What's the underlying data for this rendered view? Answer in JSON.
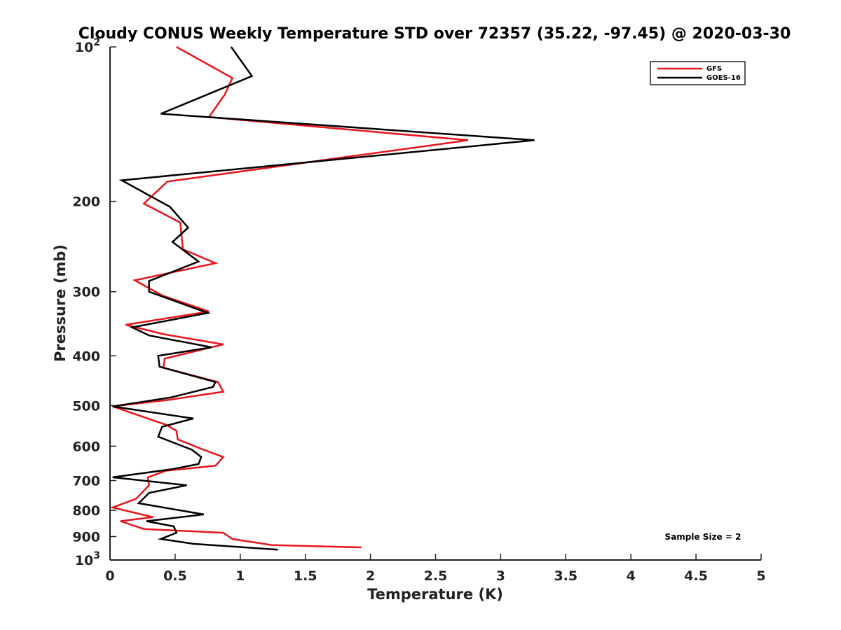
{
  "chart_data": {
    "type": "line",
    "title": "Cloudy CONUS Weekly Temperature STD over 72357 (35.22, -97.45) @ 2020-03-30",
    "xlabel": "Temperature (K)",
    "ylabel": "Pressure (mb)",
    "xlim": [
      0,
      5
    ],
    "ylim": [
      100,
      1000
    ],
    "y_scale": "log",
    "y_reversed": true,
    "x_ticks": [
      "0",
      "0.5",
      "1",
      "1.5",
      "2",
      "2.5",
      "3",
      "3.5",
      "4",
      "4.5",
      "5"
    ],
    "y_ticks": [
      {
        "value": 100,
        "base": "10",
        "exp": "2"
      },
      {
        "value": 200,
        "label": "200"
      },
      {
        "value": 300,
        "label": "300"
      },
      {
        "value": 400,
        "label": "400"
      },
      {
        "value": 500,
        "label": "500"
      },
      {
        "value": 600,
        "label": "600"
      },
      {
        "value": 700,
        "label": "700"
      },
      {
        "value": 800,
        "label": "800"
      },
      {
        "value": 900,
        "label": "900"
      },
      {
        "value": 1000,
        "base": "10",
        "exp": "3"
      }
    ],
    "grid": false,
    "legend": "top-right",
    "annotation": "Sample Size = 2",
    "series": [
      {
        "name": "GFS",
        "color": "#e8151b",
        "points": [
          [
            0.51,
            100
          ],
          [
            0.94,
            115
          ],
          [
            0.88,
            124
          ],
          [
            0.76,
            137
          ],
          [
            2.75,
            152
          ],
          [
            0.44,
            183
          ],
          [
            0.26,
            202
          ],
          [
            0.54,
            220
          ],
          [
            0.56,
            248
          ],
          [
            0.81,
            264
          ],
          [
            0.19,
            285
          ],
          [
            0.4,
            305
          ],
          [
            0.76,
            328
          ],
          [
            0.12,
            348
          ],
          [
            0.41,
            363
          ],
          [
            0.87,
            380
          ],
          [
            0.42,
            405
          ],
          [
            0.41,
            422
          ],
          [
            0.83,
            450
          ],
          [
            0.87,
            470
          ],
          [
            0.46,
            487
          ],
          [
            0.02,
            502
          ],
          [
            0.43,
            545
          ],
          [
            0.51,
            560
          ],
          [
            0.52,
            582
          ],
          [
            0.72,
            610
          ],
          [
            0.87,
            630
          ],
          [
            0.81,
            655
          ],
          [
            0.43,
            670
          ],
          [
            0.29,
            690
          ],
          [
            0.3,
            715
          ],
          [
            0.2,
            760
          ],
          [
            0.02,
            790
          ],
          [
            0.33,
            825
          ],
          [
            0.08,
            840
          ],
          [
            0.26,
            870
          ],
          [
            0.87,
            885
          ],
          [
            0.94,
            910
          ],
          [
            1.24,
            935
          ],
          [
            1.93,
            945
          ]
        ]
      },
      {
        "name": "GOES-16",
        "color": "#000000",
        "points": [
          [
            0.93,
            100
          ],
          [
            1.09,
            114
          ],
          [
            0.39,
            135
          ],
          [
            3.26,
            152
          ],
          [
            0.09,
            182
          ],
          [
            0.46,
            205
          ],
          [
            0.6,
            225
          ],
          [
            0.48,
            240
          ],
          [
            0.68,
            262
          ],
          [
            0.3,
            286
          ],
          [
            0.3,
            300
          ],
          [
            0.75,
            330
          ],
          [
            0.17,
            352
          ],
          [
            0.3,
            365
          ],
          [
            0.78,
            385
          ],
          [
            0.37,
            400
          ],
          [
            0.38,
            420
          ],
          [
            0.81,
            450
          ],
          [
            0.79,
            460
          ],
          [
            0.47,
            482
          ],
          [
            0.02,
            502
          ],
          [
            0.64,
            530
          ],
          [
            0.4,
            550
          ],
          [
            0.37,
            575
          ],
          [
            0.63,
            610
          ],
          [
            0.7,
            630
          ],
          [
            0.68,
            650
          ],
          [
            0.48,
            665
          ],
          [
            0.02,
            690
          ],
          [
            0.59,
            715
          ],
          [
            0.3,
            740
          ],
          [
            0.22,
            775
          ],
          [
            0.72,
            815
          ],
          [
            0.28,
            840
          ],
          [
            0.49,
            860
          ],
          [
            0.51,
            885
          ],
          [
            0.39,
            910
          ],
          [
            0.64,
            930
          ],
          [
            1.29,
            955
          ]
        ]
      }
    ]
  }
}
